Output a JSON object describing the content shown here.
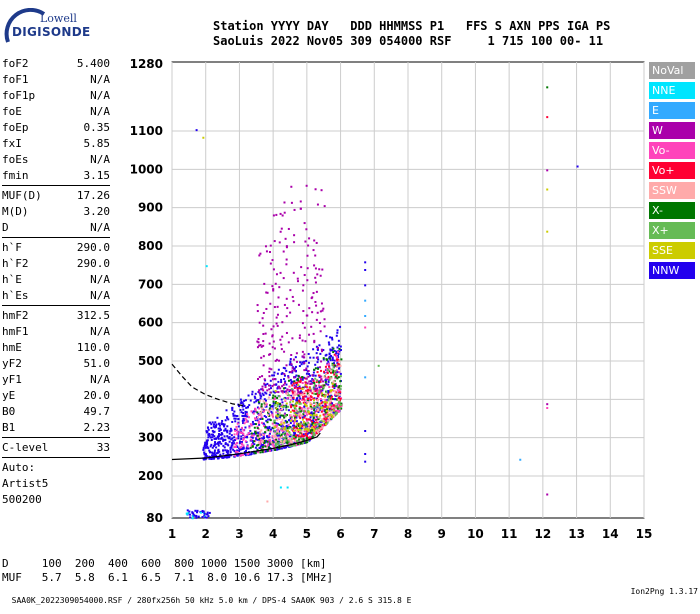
{
  "logo": {
    "line1": "Lowell",
    "line2": "DIGISONDE"
  },
  "header": {
    "line1": "Station YYYY DAY   DDD HHMMSS P1   FFS S AXN PPS IGA PS",
    "line2": "SaoLuis 2022 Nov05 309 054000 RSF     1 715 100 00- 11"
  },
  "params": {
    "group1": [
      {
        "label": "foF2",
        "value": "5.400"
      },
      {
        "label": "foF1",
        "value": "N/A"
      },
      {
        "label": "foF1p",
        "value": "N/A"
      },
      {
        "label": "foE",
        "value": "N/A"
      },
      {
        "label": "foEp",
        "value": "0.35"
      },
      {
        "label": "fxI",
        "value": "5.85"
      },
      {
        "label": "foEs",
        "value": "N/A"
      },
      {
        "label": "fmin",
        "value": "3.15"
      }
    ],
    "group2": [
      {
        "label": "MUF(D)",
        "value": "17.26"
      },
      {
        "label": "M(D)",
        "value": "3.20"
      },
      {
        "label": "D",
        "value": "N/A"
      }
    ],
    "group3": [
      {
        "label": "h`F",
        "value": "290.0"
      },
      {
        "label": "h`F2",
        "value": "290.0"
      },
      {
        "label": "h`E",
        "value": "N/A"
      },
      {
        "label": "h`Es",
        "value": "N/A"
      }
    ],
    "group4": [
      {
        "label": "hmF2",
        "value": "312.5"
      },
      {
        "label": "hmF1",
        "value": "N/A"
      },
      {
        "label": "hmE",
        "value": "110.0"
      },
      {
        "label": "yF2",
        "value": "51.0"
      },
      {
        "label": "yF1",
        "value": "N/A"
      },
      {
        "label": "yE",
        "value": "20.0"
      },
      {
        "label": "B0",
        "value": "49.7"
      },
      {
        "label": "B1",
        "value": "2.23"
      }
    ],
    "clevel": {
      "label": "C-level",
      "value": "33"
    },
    "auto": [
      "Auto:",
      "Artist5",
      "500200"
    ]
  },
  "legend": [
    {
      "label": "NoVal",
      "color": "#a0a0a0"
    },
    {
      "label": "NNE",
      "color": "#00e5ff"
    },
    {
      "label": "E",
      "color": "#33aaff"
    },
    {
      "label": "W",
      "color": "#aa00aa"
    },
    {
      "label": "Vo-",
      "color": "#ff44bb"
    },
    {
      "label": "Vo+",
      "color": "#ff0033"
    },
    {
      "label": "SSW",
      "color": "#ffaaaa"
    },
    {
      "label": "X-",
      "color": "#007700"
    },
    {
      "label": "X+",
      "color": "#66bb55"
    },
    {
      "label": "SSE",
      "color": "#cccc00"
    },
    {
      "label": "NNW",
      "color": "#2200ee"
    }
  ],
  "chart_data": {
    "type": "scatter",
    "xlim": [
      1,
      15
    ],
    "ylim": [
      80,
      1280
    ],
    "x_ticks": [
      1,
      2,
      3,
      4,
      5,
      6,
      7,
      8,
      9,
      10,
      11,
      12,
      13,
      14,
      15
    ],
    "y_ticks": [
      80,
      200,
      300,
      400,
      500,
      600,
      700,
      800,
      900,
      1000,
      1100,
      1280
    ],
    "grid": true,
    "trace_o": [
      [
        1,
        243
      ],
      [
        2,
        247
      ],
      [
        3,
        258
      ],
      [
        4,
        272
      ],
      [
        4.5,
        281
      ],
      [
        5,
        293
      ],
      [
        5.3,
        302
      ],
      [
        5.4,
        312
      ]
    ],
    "trace_dashed": [
      [
        1,
        492
      ],
      [
        1.3,
        460
      ],
      [
        1.6,
        432
      ],
      [
        2,
        412
      ],
      [
        2.4,
        399
      ],
      [
        2.8,
        388
      ],
      [
        3.1,
        384
      ]
    ],
    "regions": [
      {
        "color": "#2200ee",
        "fmin": 1.9,
        "fmax": 6,
        "base": 245,
        "spread": 230,
        "count": 1100
      },
      {
        "color": "#ff44bb",
        "fmin": 2.8,
        "fmax": 6,
        "base": 250,
        "spread": 160,
        "count": 350
      },
      {
        "color": "#ff0033",
        "fmin": 4.5,
        "fmax": 6,
        "base": 300,
        "spread": 160,
        "count": 220
      },
      {
        "color": "#007700",
        "fmin": 3.3,
        "fmax": 6,
        "base": 260,
        "spread": 180,
        "count": 220
      },
      {
        "color": "#66bb55",
        "fmin": 4,
        "fmax": 6,
        "base": 280,
        "spread": 150,
        "count": 160
      },
      {
        "color": "#aa00aa",
        "fmin": 3.5,
        "fmax": 5.5,
        "base": 420,
        "spread": 540,
        "count": 260
      },
      {
        "color": "#ffaaaa",
        "fmin": 3.5,
        "fmax": 6,
        "base": 290,
        "spread": 140,
        "count": 140
      },
      {
        "color": "#cccc00",
        "fmin": 4,
        "fmax": 5.8,
        "base": 320,
        "spread": 120,
        "count": 70
      }
    ],
    "isolated": [
      {
        "f": 6.7,
        "h": 760,
        "color": "#2200ee"
      },
      {
        "f": 6.7,
        "h": 740,
        "color": "#2200ee"
      },
      {
        "f": 6.7,
        "h": 700,
        "color": "#2200ee"
      },
      {
        "f": 6.7,
        "h": 660,
        "color": "#33aaff"
      },
      {
        "f": 6.7,
        "h": 620,
        "color": "#33aaff"
      },
      {
        "f": 6.7,
        "h": 590,
        "color": "#ff44bb"
      },
      {
        "f": 6.7,
        "h": 460,
        "color": "#33aaff"
      },
      {
        "f": 6.7,
        "h": 320,
        "color": "#2200ee"
      },
      {
        "f": 6.7,
        "h": 260,
        "color": "#2200ee"
      },
      {
        "f": 6.7,
        "h": 240,
        "color": "#2200ee"
      },
      {
        "f": 12.1,
        "h": 1220,
        "color": "#007700"
      },
      {
        "f": 12.1,
        "h": 1140,
        "color": "#ff0033"
      },
      {
        "f": 12.1,
        "h": 1000,
        "color": "#aa00aa"
      },
      {
        "f": 12.1,
        "h": 950,
        "color": "#cccc00"
      },
      {
        "f": 12.1,
        "h": 840,
        "color": "#cccc00"
      },
      {
        "f": 12.1,
        "h": 390,
        "color": "#aa00aa"
      },
      {
        "f": 12.1,
        "h": 380,
        "color": "#ff44bb"
      },
      {
        "f": 12.1,
        "h": 150,
        "color": "#aa00aa"
      },
      {
        "f": 13,
        "h": 1010,
        "color": "#2200ee"
      },
      {
        "f": 11.3,
        "h": 245,
        "color": "#33aaff"
      },
      {
        "f": 1.7,
        "h": 1105,
        "color": "#2200ee"
      },
      {
        "f": 1.9,
        "h": 1085,
        "color": "#cccc00"
      },
      {
        "f": 2,
        "h": 750,
        "color": "#00e5ff"
      },
      {
        "f": 7.1,
        "h": 490,
        "color": "#66bb55"
      },
      {
        "f": 4.2,
        "h": 170,
        "color": "#00e5ff"
      },
      {
        "f": 4.4,
        "h": 170,
        "color": "#00e5ff"
      },
      {
        "f": 3.8,
        "h": 130,
        "color": "#ffaaaa"
      }
    ],
    "low_cluster": {
      "fmin": 1.4,
      "fmax": 2.1,
      "hmin": 82,
      "hmax": 105,
      "color": "#2200ee"
    }
  },
  "footer": {
    "line1": "D     100  200  400  600  800 1000 1500 3000 [km]",
    "line2": "MUF   5.7  5.8  6.1  6.5  7.1  8.0 10.6 17.3 [MHz]",
    "bottom_left": "SAA0K_2022309054000.RSF / 280fx256h 50 kHz 5.0 km / DPS-4 SAA0K 903 / 2.6 S 315.8 E",
    "bottom_right": "Ion2Png 1.3.17"
  }
}
